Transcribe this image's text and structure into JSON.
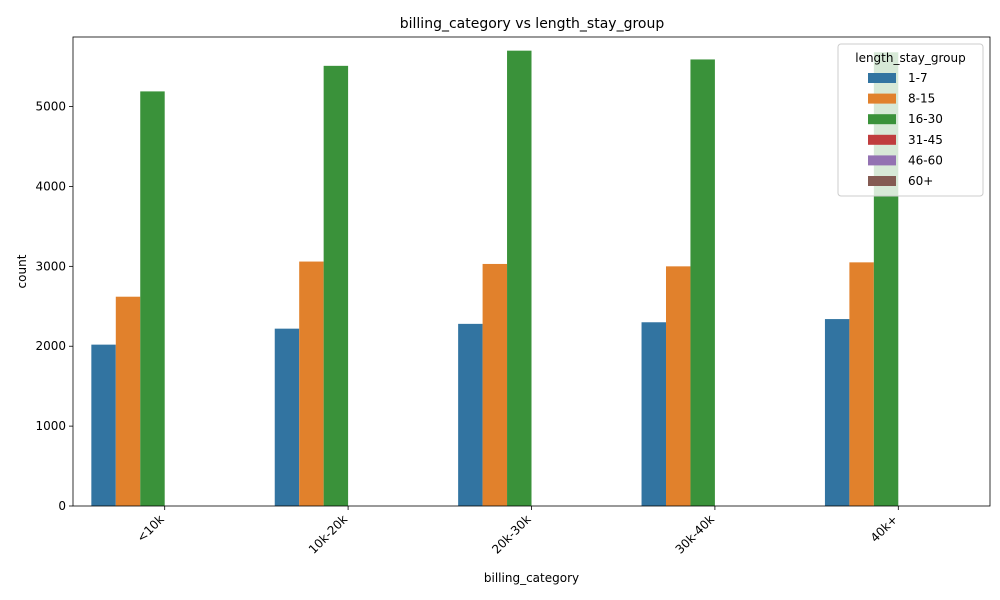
{
  "chart_data": {
    "type": "bar",
    "title": "billing_category vs length_stay_group",
    "xlabel": "billing_category",
    "ylabel": "count",
    "ylim": [
      0,
      6000
    ],
    "yticks": [
      0,
      1000,
      2000,
      3000,
      4000,
      5000
    ],
    "categories": [
      "<10k",
      "10k-20k",
      "20k-30k",
      "30k-40k",
      "40k+"
    ],
    "legend_title": "length_stay_group",
    "legend_position": "top-right",
    "grid": false,
    "series": [
      {
        "name": "1-7",
        "color": "#3274a1",
        "values": [
          2020,
          2220,
          2280,
          2300,
          2340
        ]
      },
      {
        "name": "8-15",
        "color": "#e1812c",
        "values": [
          2620,
          3060,
          3030,
          3000,
          3050
        ]
      },
      {
        "name": "16-30",
        "color": "#3a923a",
        "values": [
          5190,
          5510,
          5700,
          5590,
          5680
        ]
      },
      {
        "name": "31-45",
        "color": "#c03d3e",
        "values": [
          0,
          0,
          0,
          0,
          0
        ]
      },
      {
        "name": "46-60",
        "color": "#9372b2",
        "values": [
          0,
          0,
          0,
          0,
          0
        ]
      },
      {
        "name": "60+",
        "color": "#845b53",
        "values": [
          0,
          0,
          0,
          0,
          0
        ]
      }
    ]
  }
}
